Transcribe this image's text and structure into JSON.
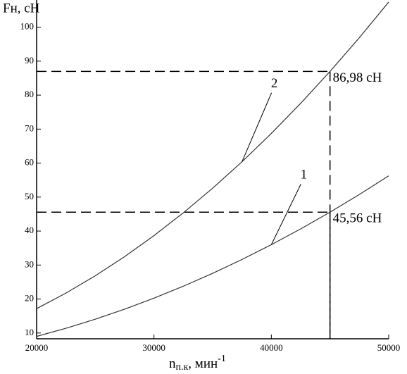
{
  "chart_data": {
    "type": "line",
    "ylabel": "Fн, сН",
    "xlabel": {
      "main": "n",
      "sub": "п.к",
      "unit": ", мин",
      "sup": "-1"
    },
    "x": [
      20000,
      22500,
      25000,
      27500,
      30000,
      32500,
      35000,
      37500,
      40000,
      42500,
      45000,
      47500,
      50000
    ],
    "series": [
      {
        "name": "1",
        "color": "#333333",
        "values": [
          9.0,
          11.39,
          14.06,
          17.02,
          20.25,
          23.77,
          27.56,
          31.64,
          36.0,
          40.64,
          45.56,
          50.77,
          56.25
        ]
      },
      {
        "name": "2",
        "color": "#333333",
        "values": [
          17.18,
          21.75,
          26.85,
          32.48,
          38.66,
          45.37,
          52.62,
          60.4,
          68.73,
          77.59,
          86.98,
          96.91,
          107.39
        ]
      }
    ],
    "reference_lines": [
      {
        "x": 45000,
        "y": 86.98,
        "label": "86,98 сН"
      },
      {
        "x": 45000,
        "y": 45.56,
        "label": "45,56 сН"
      }
    ],
    "xlim": [
      20000,
      50000
    ],
    "ylim": [
      8.3,
      108
    ],
    "xticks": [
      20000,
      30000,
      40000,
      50000
    ],
    "yticks": [
      10,
      20,
      30,
      40,
      50,
      60,
      70,
      80,
      90,
      100
    ]
  }
}
